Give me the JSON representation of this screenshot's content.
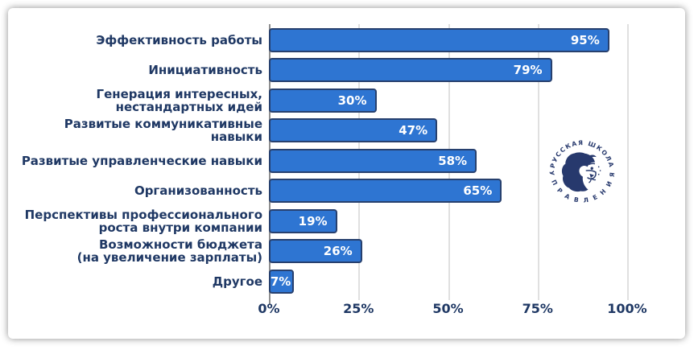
{
  "chart_data": {
    "type": "bar",
    "orientation": "horizontal",
    "title": "",
    "xlabel": "",
    "ylabel": "",
    "xlim": [
      0,
      100
    ],
    "grid": true,
    "legend_position": "none",
    "categories": [
      "Эффективность работы",
      "Инициативность",
      "Генерация интересных,\nнестандартных идей",
      "Развитые коммуникативные\nнавыки",
      "Развитые управленческие навыки",
      "Организованность",
      "Перспективы профессионального\nроста внутри компании",
      "Возможности бюджета\n(на увеличение зарплаты)",
      "Другое"
    ],
    "values": [
      95,
      79,
      30,
      47,
      58,
      65,
      19,
      26,
      7
    ],
    "value_labels": [
      "95%",
      "79%",
      "30%",
      "47%",
      "58%",
      "65%",
      "19%",
      "26%",
      "7%"
    ],
    "x_ticks": [
      {
        "pct": 0,
        "label": "0%"
      },
      {
        "pct": 25,
        "label": "25%"
      },
      {
        "pct": 50,
        "label": "50%"
      },
      {
        "pct": 75,
        "label": "75%"
      },
      {
        "pct": 100,
        "label": "100%"
      }
    ],
    "colors": {
      "bar_fill": "#2e75d2",
      "bar_border": "#27406e",
      "label_text": "#1f3864",
      "value_text": "#ffffff",
      "gridline": "#e0e0e0",
      "axis_line": "#8f8f8f"
    }
  },
  "logo": {
    "top_text": "• РУССКАЯ ШКОЛА •",
    "bottom_text": "У П Р А В Л Е Н И Я",
    "color": "#1c2f66"
  }
}
